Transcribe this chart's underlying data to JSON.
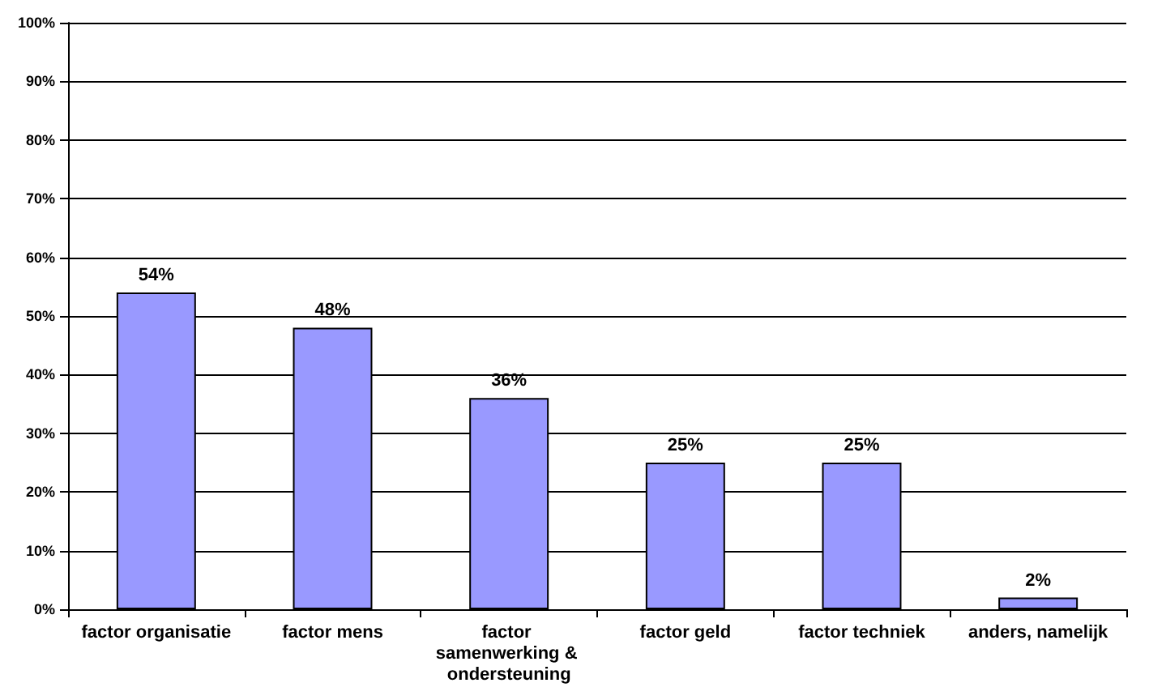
{
  "chart_data": {
    "type": "bar",
    "categories": [
      "factor organisatie",
      "factor mens",
      "factor samenwerking & ondersteuning",
      "factor geld",
      "factor techniek",
      "anders, namelijk"
    ],
    "values": [
      54,
      48,
      36,
      25,
      25,
      2
    ],
    "value_labels": [
      "54%",
      "48%",
      "36%",
      "25%",
      "25%",
      "2%"
    ],
    "color": "#9999ff",
    "ylim": [
      0,
      100
    ],
    "yticks": [
      {
        "value": 0,
        "label": "0%"
      },
      {
        "value": 10,
        "label": "10%"
      },
      {
        "value": 20,
        "label": "20%"
      },
      {
        "value": 30,
        "label": "30%"
      },
      {
        "value": 40,
        "label": "40%"
      },
      {
        "value": 50,
        "label": "50%"
      },
      {
        "value": 60,
        "label": "60%"
      },
      {
        "value": 70,
        "label": "70%"
      },
      {
        "value": 80,
        "label": "80%"
      },
      {
        "value": 90,
        "label": "90%"
      },
      {
        "value": 100,
        "label": "100%"
      }
    ],
    "grid": true
  }
}
